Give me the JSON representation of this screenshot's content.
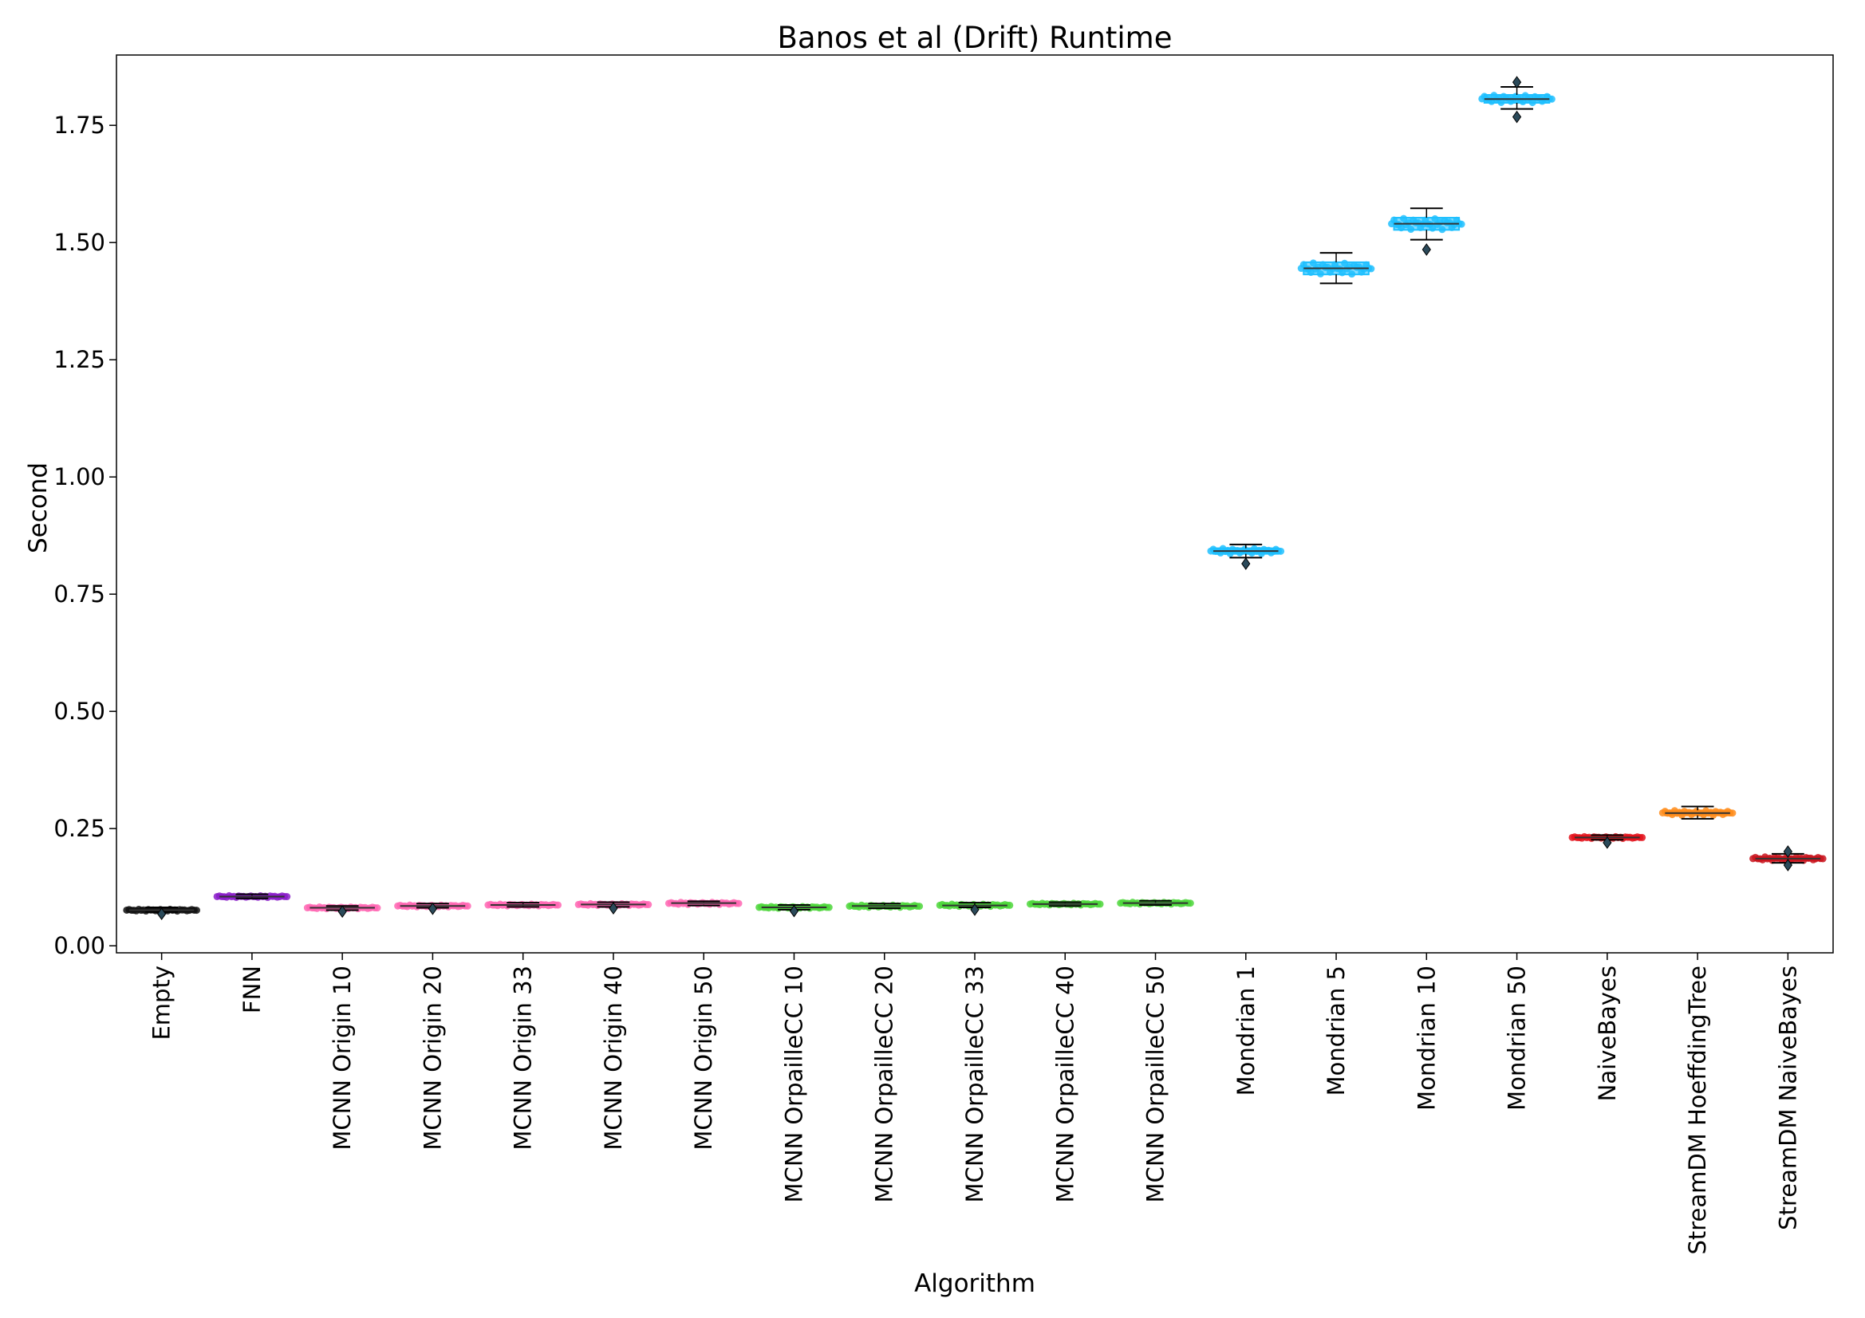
{
  "chart_data": {
    "type": "box",
    "title": "Banos et al (Drift) Runtime",
    "xlabel": "Algorithm",
    "ylabel": "Second",
    "ylim": [
      -0.015,
      1.9
    ],
    "yticks": [
      0.0,
      0.25,
      0.5,
      0.75,
      1.0,
      1.25,
      1.5,
      1.75
    ],
    "ytick_labels": [
      "0.00",
      "0.25",
      "0.50",
      "0.75",
      "1.00",
      "1.25",
      "1.50",
      "1.75"
    ],
    "grid": false,
    "legend": "none",
    "categories": [
      "Empty",
      "FNN",
      "MCNN Origin 10",
      "MCNN Origin 20",
      "MCNN Origin 33",
      "MCNN Origin 40",
      "MCNN Origin 50",
      "MCNN OrpailleCC 10",
      "MCNN OrpailleCC 20",
      "MCNN OrpailleCC 33",
      "MCNN OrpailleCC 40",
      "MCNN OrpailleCC 50",
      "Mondrian 1",
      "Mondrian 5",
      "Mondrian 10",
      "Mondrian 50",
      "NaiveBayes",
      "StreamDM HoeffdingTree",
      "StreamDM NaiveBayes"
    ],
    "boxes": [
      {
        "whislo": 0.072,
        "q1": 0.074,
        "med": 0.076,
        "q3": 0.078,
        "whishi": 0.082,
        "fliers": [
          0.068
        ],
        "color": "#111111"
      },
      {
        "whislo": 0.101,
        "q1": 0.103,
        "med": 0.105,
        "q3": 0.107,
        "whishi": 0.11,
        "fliers": [],
        "color": "#8a1dc9"
      },
      {
        "whislo": 0.076,
        "q1": 0.079,
        "med": 0.081,
        "q3": 0.083,
        "whishi": 0.085,
        "fliers": [
          0.073
        ],
        "color": "#ff66b3"
      },
      {
        "whislo": 0.081,
        "q1": 0.083,
        "med": 0.085,
        "q3": 0.087,
        "whishi": 0.09,
        "fliers": [
          0.079
        ],
        "color": "#ff66b3"
      },
      {
        "whislo": 0.083,
        "q1": 0.085,
        "med": 0.087,
        "q3": 0.089,
        "whishi": 0.092,
        "fliers": [],
        "color": "#ff66b3"
      },
      {
        "whislo": 0.083,
        "q1": 0.086,
        "med": 0.088,
        "q3": 0.09,
        "whishi": 0.093,
        "fliers": [
          0.08
        ],
        "color": "#ff66b3"
      },
      {
        "whislo": 0.086,
        "q1": 0.088,
        "med": 0.091,
        "q3": 0.093,
        "whishi": 0.095,
        "fliers": [],
        "color": "#ff66b3"
      },
      {
        "whislo": 0.077,
        "q1": 0.08,
        "med": 0.082,
        "q3": 0.084,
        "whishi": 0.087,
        "fliers": [
          0.074
        ],
        "color": "#4cd63a"
      },
      {
        "whislo": 0.08,
        "q1": 0.082,
        "med": 0.085,
        "q3": 0.087,
        "whishi": 0.09,
        "fliers": [],
        "color": "#4cd63a"
      },
      {
        "whislo": 0.082,
        "q1": 0.084,
        "med": 0.086,
        "q3": 0.089,
        "whishi": 0.092,
        "fliers": [
          0.077
        ],
        "color": "#4cd63a"
      },
      {
        "whislo": 0.085,
        "q1": 0.087,
        "med": 0.089,
        "q3": 0.091,
        "whishi": 0.093,
        "fliers": [],
        "color": "#4cd63a"
      },
      {
        "whislo": 0.087,
        "q1": 0.089,
        "med": 0.091,
        "q3": 0.093,
        "whishi": 0.096,
        "fliers": [],
        "color": "#4cd63a"
      },
      {
        "whislo": 0.828,
        "q1": 0.836,
        "med": 0.842,
        "q3": 0.848,
        "whishi": 0.856,
        "fliers": [
          0.815
        ],
        "color": "#1ec0ff"
      },
      {
        "whislo": 1.413,
        "q1": 1.432,
        "med": 1.445,
        "q3": 1.458,
        "whishi": 1.478,
        "fliers": [],
        "color": "#1ec0ff"
      },
      {
        "whislo": 1.506,
        "q1": 1.527,
        "med": 1.54,
        "q3": 1.553,
        "whishi": 1.573,
        "fliers": [
          1.485
        ],
        "color": "#1ec0ff"
      },
      {
        "whislo": 1.785,
        "q1": 1.798,
        "med": 1.806,
        "q3": 1.815,
        "whishi": 1.832,
        "fliers": [
          1.768,
          1.842
        ],
        "color": "#1ec0ff"
      },
      {
        "whislo": 0.226,
        "q1": 0.229,
        "med": 0.231,
        "q3": 0.233,
        "whishi": 0.236,
        "fliers": [
          0.22
        ],
        "color": "#e3121b"
      },
      {
        "whislo": 0.271,
        "q1": 0.278,
        "med": 0.283,
        "q3": 0.289,
        "whishi": 0.297,
        "fliers": [],
        "color": "#ff8c1a"
      },
      {
        "whislo": 0.177,
        "q1": 0.182,
        "med": 0.186,
        "q3": 0.19,
        "whishi": 0.196,
        "fliers": [
          0.172,
          0.201
        ],
        "color": "#c9151e"
      }
    ]
  }
}
